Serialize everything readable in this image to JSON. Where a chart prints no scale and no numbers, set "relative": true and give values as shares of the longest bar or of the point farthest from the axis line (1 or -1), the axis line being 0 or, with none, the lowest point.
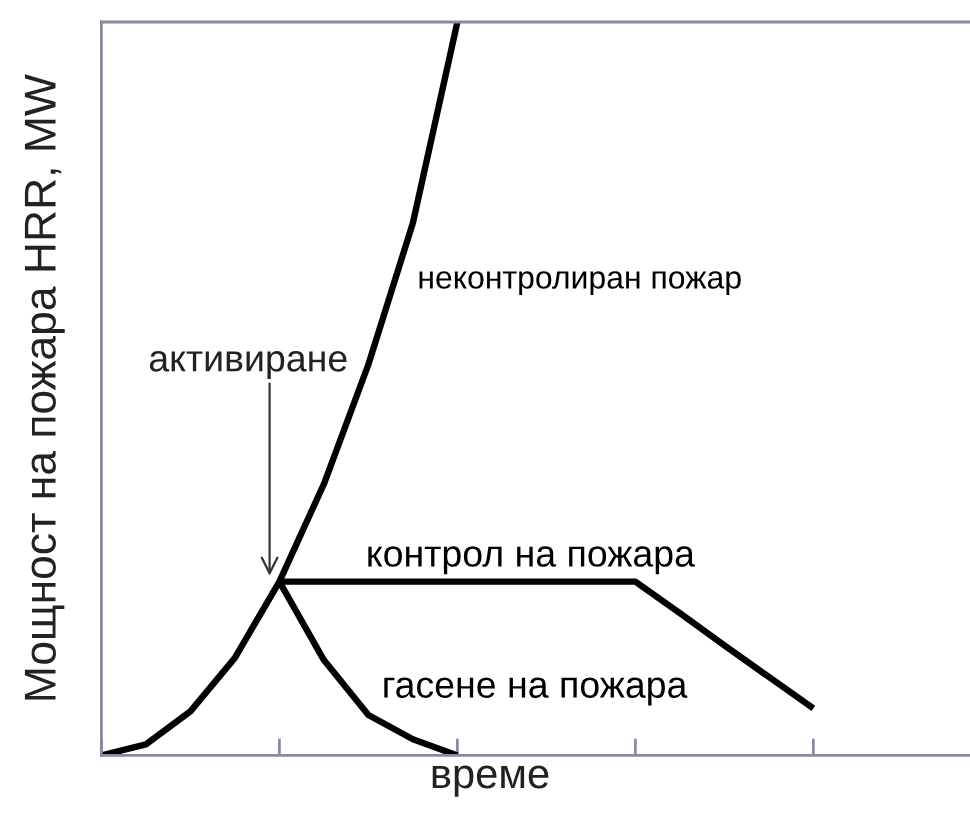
{
  "chart_data": {
    "type": "line",
    "relative": true,
    "xlabel": "време",
    "ylabel": "Мощност на пожара HRR, MW",
    "categories": [
      null,
      null,
      null,
      null,
      null,
      null,
      null,
      null,
      null,
      null,
      null,
      null,
      null,
      null,
      null,
      null,
      null
    ],
    "series": [
      {
        "name": "неконтролиран пожар",
        "color": "#000000",
        "values": [
          0,
          0.015,
          0.06,
          0.133,
          0.237,
          0.37,
          0.533,
          0.726,
          1,
          null,
          null,
          null,
          null,
          null,
          null,
          null,
          null
        ]
      },
      {
        "name": "контрол на пожара",
        "color": "#000000",
        "values": [
          null,
          null,
          null,
          null,
          0.237,
          0.237,
          0.237,
          0.237,
          0.237,
          0.237,
          0.237,
          0.237,
          0.237,
          0.194,
          0.15,
          0.107,
          0.064
        ]
      },
      {
        "name": "гасене на пожара",
        "color": "#000000",
        "values": [
          null,
          null,
          null,
          null,
          0.237,
          0.13,
          0.055,
          0.022,
          0,
          null,
          null,
          null,
          null,
          null,
          null,
          null,
          null
        ]
      }
    ],
    "annotations": [
      "активиране"
    ],
    "grid": false,
    "legend": false,
    "marker": "none",
    "line_style": "solid"
  }
}
